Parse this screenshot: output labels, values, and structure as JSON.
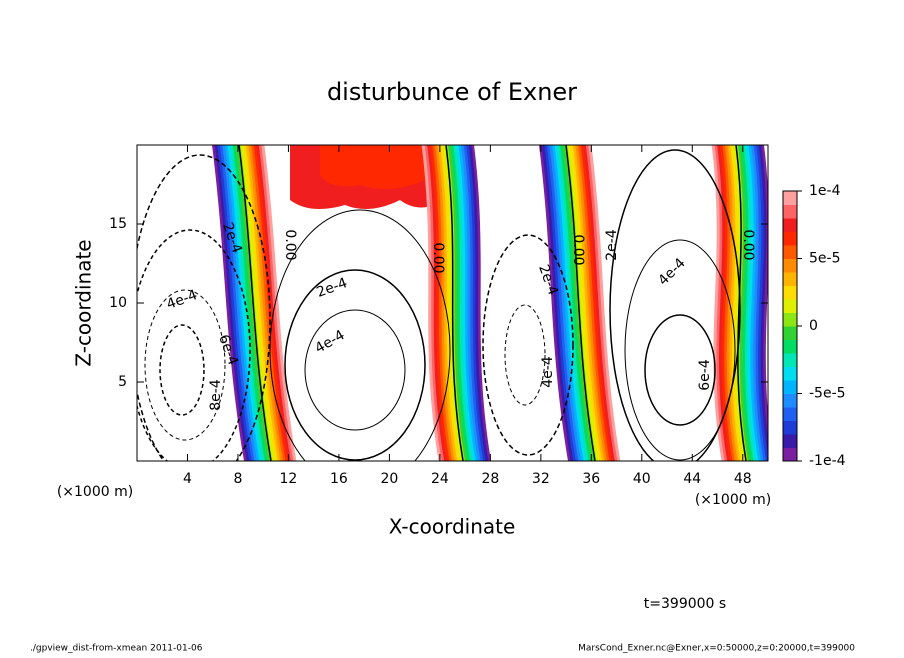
{
  "chart_data": {
    "type": "contour",
    "title": "disturbunce of Exner",
    "x_label": "X-coordinate",
    "y_label": "Z-coordinate",
    "x_unit": "(×1000 m)",
    "y_unit": "(×1000 m)",
    "xlim": [
      0,
      50
    ],
    "xticks": [
      4,
      8,
      12,
      16,
      20,
      24,
      28,
      32,
      36,
      40,
      44,
      48
    ],
    "ylim": [
      0,
      20
    ],
    "yticks": [
      5,
      10,
      15
    ],
    "colorbar": {
      "clim": [
        -0.0001,
        0.0001
      ],
      "ticks": [
        {
          "value": 0.0001,
          "label": "1e-4"
        },
        {
          "value": 5e-05,
          "label": "5e-5"
        },
        0,
        {
          "value": -5e-05,
          "label": "-5e-5"
        },
        {
          "value": -0.0001,
          "label": "-1e-4"
        }
      ],
      "colors": [
        "#7a1fa2",
        "#3a1aa8",
        "#1f3cd6",
        "#2060f0",
        "#1e8cff",
        "#00b4ff",
        "#00dcf0",
        "#00e6b4",
        "#00dc64",
        "#32d232",
        "#8ce614",
        "#dcf000",
        "#ffdc00",
        "#ffb400",
        "#ff8c00",
        "#ff5a00",
        "#ff2800",
        "#f01e1e",
        "#ff6464",
        "#ffa0a0"
      ]
    },
    "contour_labels": [
      "2e-4",
      "4e-4",
      "6e-4",
      "8e-4",
      "0.00",
      "2e-4",
      "4e-4",
      "0.00",
      "2e-4",
      "4e-4",
      "0.00",
      "2e-4",
      "4e-4",
      "6e-4",
      "0.00"
    ],
    "time_label": "t=399000 s",
    "footer_left": "./gpview_dist-from-xmean  2011-01-06",
    "footer_right": "MarsCond_Exner.nc@Exner,x=0:50000,z=0:20000,t=399000"
  }
}
